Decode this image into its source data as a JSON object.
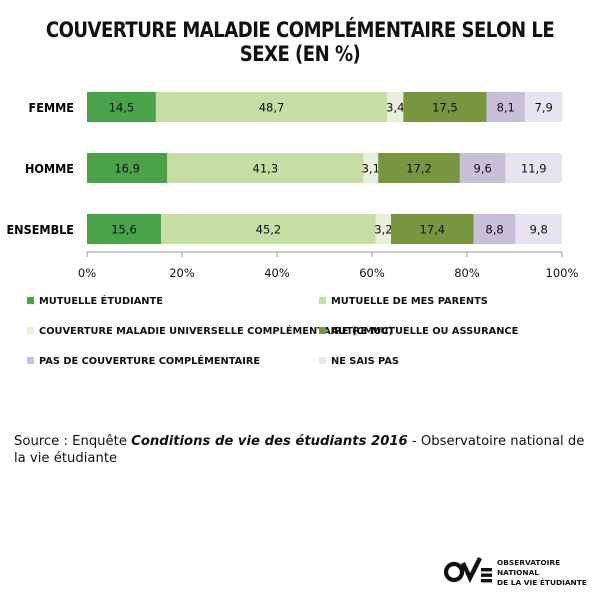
{
  "title": "COUVERTURE MALADIE COMPLÉMENTAIRE SELON LE SEXE (EN %)",
  "chart_data": {
    "type": "bar",
    "orientation": "horizontal",
    "stacked": true,
    "categories": [
      "FEMME",
      "HOMME",
      "ENSEMBLE"
    ],
    "xlim": [
      0,
      100
    ],
    "x_ticks": [
      "0%",
      "20%",
      "40%",
      "60%",
      "80%",
      "100%"
    ],
    "legend_position": "bottom",
    "series": [
      {
        "name": "MUTUELLE ÉTUDIANTE",
        "values": [
          14.5,
          16.9,
          15.6
        ],
        "labels": [
          "14,5",
          "16,9",
          "15,6"
        ],
        "color": "#4aa34a"
      },
      {
        "name": "MUTUELLE DE MES PARENTS",
        "values": [
          48.7,
          41.3,
          45.2
        ],
        "labels": [
          "48,7",
          "41,3",
          "45,2"
        ],
        "color": "#c5dea3"
      },
      {
        "name": "COUVERTURE MALADIE UNIVERSELLE COMPLÉMENTAIRE (CMUC)",
        "values": [
          3.4,
          3.1,
          3.2
        ],
        "labels": [
          "3,4",
          "3,1",
          "3,2"
        ],
        "color": "#e8efdb"
      },
      {
        "name": "AUTRE MUTUELLE OU ASSURANCE",
        "values": [
          17.5,
          17.2,
          17.4
        ],
        "labels": [
          "17,5",
          "17,2",
          "17,4"
        ],
        "color": "#77963f"
      },
      {
        "name": "PAS DE COUVERTURE COMPLÉMENTAIRE",
        "values": [
          8.1,
          9.6,
          8.8
        ],
        "labels": [
          "8,1",
          "9,6",
          "8,8"
        ],
        "color": "#c8bfd9"
      },
      {
        "name": "NE SAIS PAS",
        "values": [
          7.9,
          11.9,
          9.8
        ],
        "labels": [
          "7,9",
          "11,9",
          "9,8"
        ],
        "color": "#e7e4ef"
      }
    ]
  },
  "source": {
    "prefix": "Source : ",
    "text1": "Enquête ",
    "italic": "Conditions de vie des étudiants 2016",
    "text2": " - Observatoire national de la vie étudiante"
  },
  "logo": {
    "line1": "OBSERVATOIRE NATIONAL",
    "line2": "DE LA VIE ÉTUDIANTE"
  }
}
